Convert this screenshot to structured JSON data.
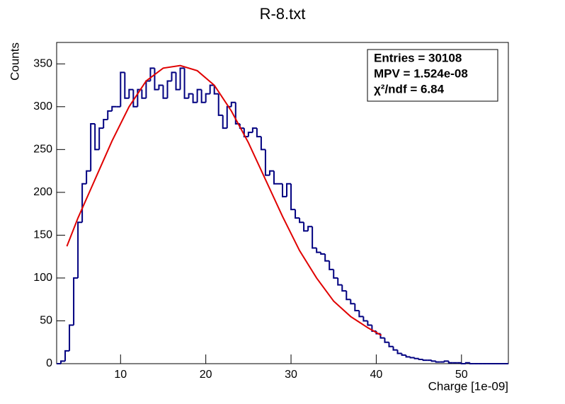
{
  "chart_data": {
    "type": "histogram",
    "title": "R-8.txt",
    "x_label": "Charge [1e-09]",
    "y_label": "Counts",
    "color": "#000080",
    "bins": [
      2.5,
      3,
      3.5,
      4,
      4.5,
      5,
      5.5,
      6,
      6.5,
      7,
      7.5,
      8,
      8.5,
      9,
      9.5,
      10,
      10.5,
      11,
      11.5,
      12,
      12.5,
      13,
      13.5,
      14,
      14.5,
      15,
      15.5,
      16,
      16.5,
      17,
      17.5,
      18,
      18.5,
      19,
      19.5,
      20,
      20.5,
      21,
      21.5,
      22,
      22.5,
      23,
      23.5,
      24,
      24.5,
      25,
      25.5,
      26,
      26.5,
      27,
      27.5,
      28,
      28.5,
      29,
      29.5,
      30,
      30.5,
      31,
      31.5,
      32,
      32.5,
      33,
      33.5,
      34,
      34.5,
      35,
      35.5,
      36,
      36.5,
      37,
      37.5,
      38,
      38.5,
      39,
      39.5,
      40,
      40.5,
      41,
      41.5,
      42,
      42.5,
      43,
      43.5,
      44,
      44.5,
      45,
      45.5,
      46,
      46.5,
      47,
      47.5,
      48,
      48.5,
      49,
      49.5,
      50,
      50.5,
      51,
      51.5,
      52,
      52.5,
      53,
      53.5,
      54,
      54.5,
      55,
      55.5
    ],
    "values": [
      0,
      3,
      15,
      45,
      100,
      165,
      210,
      225,
      280,
      250,
      275,
      285,
      295,
      300,
      300,
      340,
      310,
      320,
      300,
      320,
      310,
      330,
      345,
      320,
      325,
      310,
      330,
      340,
      320,
      345,
      310,
      315,
      305,
      320,
      305,
      315,
      325,
      315,
      290,
      275,
      300,
      305,
      280,
      275,
      265,
      270,
      275,
      265,
      250,
      220,
      225,
      210,
      210,
      195,
      210,
      180,
      170,
      165,
      155,
      160,
      135,
      130,
      128,
      120,
      110,
      100,
      92,
      85,
      75,
      70,
      62,
      55,
      50,
      45,
      38,
      35,
      30,
      25,
      20,
      16,
      12,
      10,
      8,
      7,
      6,
      5,
      4,
      4,
      3,
      2,
      2,
      3,
      1,
      1,
      1,
      0,
      1,
      0,
      0,
      0,
      0,
      0,
      0,
      0,
      0,
      0
    ],
    "fit": {
      "color": "#e00000",
      "x": [
        3.7,
        5,
        7,
        9,
        11,
        13,
        15,
        17,
        19,
        21,
        23,
        25,
        27,
        29,
        31,
        33,
        35,
        37,
        39,
        40.6
      ],
      "y": [
        137,
        170,
        215,
        260,
        300,
        330,
        345,
        348,
        342,
        325,
        295,
        258,
        215,
        172,
        132,
        100,
        73,
        55,
        42,
        33
      ]
    },
    "xlim": [
      2.5,
      55.5
    ],
    "ylim": [
      0,
      375
    ],
    "xticks": [
      10,
      20,
      30,
      40,
      50
    ],
    "yticks": [
      0,
      50,
      100,
      150,
      200,
      250,
      300,
      350
    ],
    "stats": [
      "Entries = 30108",
      "MPV = 1.524e-08",
      "χ²/ndf = 6.84"
    ]
  }
}
